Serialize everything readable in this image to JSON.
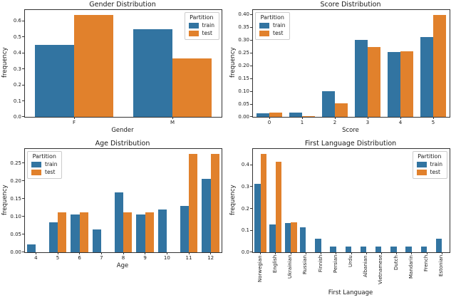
{
  "figure": {
    "background": "#ffffff",
    "legend_title": "Partition",
    "series_names": [
      "train",
      "test"
    ],
    "series_colors": {
      "train": "#3274a1",
      "test": "#e1812c"
    }
  },
  "chart_data": [
    {
      "type": "bar",
      "title": "Gender Distribution",
      "xlabel": "Gender",
      "ylabel": "frequency",
      "categories": [
        "F",
        "M"
      ],
      "series": [
        {
          "name": "train",
          "values": [
            0.452,
            0.548
          ]
        },
        {
          "name": "test",
          "values": [
            0.636,
            0.364
          ]
        }
      ],
      "ylim": [
        0,
        0.668
      ],
      "yticks": [
        0.0,
        0.1,
        0.2,
        0.3,
        0.4,
        0.5,
        0.6
      ],
      "ytick_labels": [
        "0.0",
        "0.1",
        "0.2",
        "0.3",
        "0.4",
        "0.5",
        "0.6"
      ],
      "legend_position": "upper-right",
      "xtick_rotation": 0,
      "grid": false
    },
    {
      "type": "bar",
      "title": "Score Distribution",
      "xlabel": "Score",
      "ylabel": "frequency",
      "categories": [
        "0",
        "1",
        "2",
        "3",
        "4",
        "5"
      ],
      "series": [
        {
          "name": "train",
          "values": [
            0.013,
            0.018,
            0.099,
            0.302,
            0.253,
            0.313
          ]
        },
        {
          "name": "test",
          "values": [
            0.016,
            0.003,
            0.053,
            0.272,
            0.257,
            0.398
          ]
        }
      ],
      "ylim": [
        0,
        0.418
      ],
      "yticks": [
        0.0,
        0.05,
        0.1,
        0.15,
        0.2,
        0.25,
        0.3,
        0.35,
        0.4
      ],
      "ytick_labels": [
        "0.00",
        "0.05",
        "0.10",
        "0.15",
        "0.20",
        "0.25",
        "0.30",
        "0.35",
        "0.40"
      ],
      "legend_position": "upper-left",
      "xtick_rotation": 0,
      "grid": false
    },
    {
      "type": "bar",
      "title": "Age Distribution",
      "xlabel": "Age",
      "ylabel": "frequency",
      "categories": [
        "4",
        "5",
        "6",
        "7",
        "8",
        "9",
        "10",
        "11",
        "12"
      ],
      "series": [
        {
          "name": "train",
          "values": [
            0.021,
            0.084,
            0.105,
            0.063,
            0.168,
            0.105,
            0.119,
            0.129,
            0.206
          ]
        },
        {
          "name": "test",
          "values": [
            0,
            0.1125,
            0.1125,
            0,
            0.1125,
            0.111,
            0,
            0.275,
            0.275
          ]
        }
      ],
      "ylim": [
        0,
        0.289
      ],
      "yticks": [
        0.0,
        0.05,
        0.1,
        0.15,
        0.2,
        0.25
      ],
      "ytick_labels": [
        "0.00",
        "0.05",
        "0.10",
        "0.15",
        "0.20",
        "0.25"
      ],
      "legend_position": "upper-left",
      "xtick_rotation": 0,
      "grid": false
    },
    {
      "type": "bar",
      "title": "First Language Distribution",
      "xlabel": "First Language",
      "ylabel": "frequency",
      "categories": [
        "Norwegian",
        "English",
        "Ukrainian",
        "Russian",
        "Finnish",
        "Persian",
        "Urdu",
        "Albanian",
        "Vietnamese",
        "Dutch",
        "Mandarin",
        "French",
        "Estonian"
      ],
      "series": [
        {
          "name": "train",
          "values": [
            0.312,
            0.128,
            0.135,
            0.115,
            0.063,
            0.026,
            0.026,
            0.026,
            0.026,
            0.026,
            0.026,
            0.026,
            0.063
          ]
        },
        {
          "name": "test",
          "values": [
            0.45,
            0.413,
            0.138,
            0,
            0,
            0,
            0,
            0,
            0,
            0,
            0,
            0,
            0
          ]
        }
      ],
      "ylim": [
        0,
        0.4725
      ],
      "yticks": [
        0.0,
        0.1,
        0.2,
        0.3,
        0.4
      ],
      "ytick_labels": [
        "0.0",
        "0.1",
        "0.2",
        "0.3",
        "0.4"
      ],
      "legend_position": "upper-right",
      "xtick_rotation": 90,
      "grid": false
    }
  ]
}
